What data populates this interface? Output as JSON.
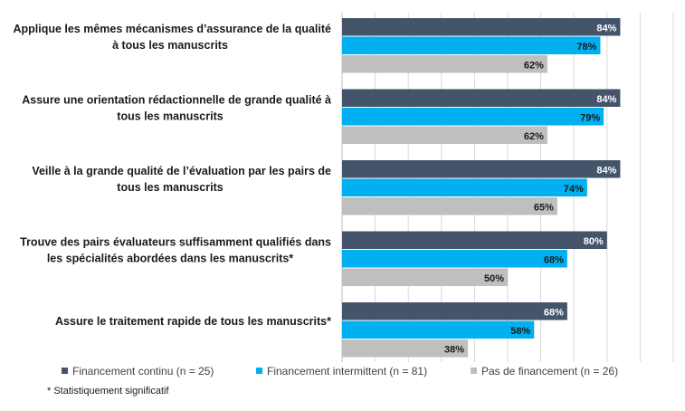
{
  "chart_data": {
    "type": "bar",
    "orientation": "horizontal",
    "categories": [
      [
        "Applique les mêmes mécanismes d’assurance de la qualité",
        "à tous les manuscrits"
      ],
      [
        "Assure une orientation rédactionnelle de grande qualité à",
        "tous les manuscrits"
      ],
      [
        "Veille à la grande qualité de l’évaluation par les pairs de",
        "tous les manuscrits"
      ],
      [
        "Trouve des pairs évaluateurs suffisamment qualifiés dans",
        "les spécialités abordées dans les manuscrits*"
      ],
      [
        "Assure le traitement rapide de tous les manuscrits*"
      ]
    ],
    "series": [
      {
        "name": "Financement continu (n = 25)",
        "color": "#44546A",
        "label_color": "#ffffff",
        "values": [
          84,
          84,
          84,
          80,
          68
        ]
      },
      {
        "name": "Financement intermittent (n = 81)",
        "color": "#00B0F0",
        "label_color": "#1a1a1a",
        "values": [
          78,
          79,
          74,
          68,
          58
        ]
      },
      {
        "name": "Pas de financement (n = 26)",
        "color": "#BFBFBF",
        "label_color": "#1a1a1a",
        "values": [
          62,
          62,
          65,
          50,
          38
        ]
      }
    ],
    "value_suffix": "%",
    "xlim": [
      0,
      100
    ],
    "grid": true,
    "legend_position": "bottom"
  },
  "footnote": "* Statistiquement significatif"
}
